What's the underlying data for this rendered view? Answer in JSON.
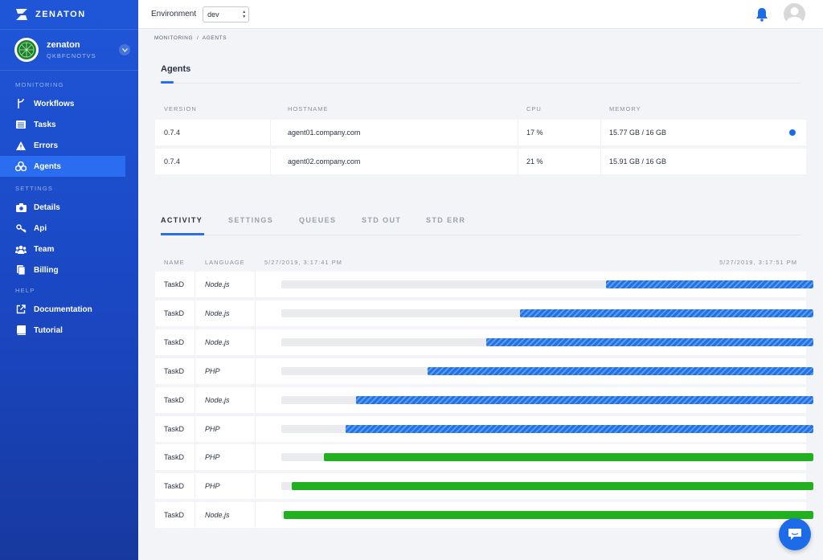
{
  "brand": {
    "name": "ZENATON"
  },
  "account": {
    "name": "zenaton",
    "id": "QKBFCNOTVS"
  },
  "sidebar": {
    "sections": [
      {
        "title": "MONITORING",
        "items": [
          {
            "label": "Workflows",
            "icon": "workflow-icon"
          },
          {
            "label": "Tasks",
            "icon": "tasks-icon"
          },
          {
            "label": "Errors",
            "icon": "warning-icon"
          },
          {
            "label": "Agents",
            "icon": "agents-icon",
            "active": true
          }
        ]
      },
      {
        "title": "SETTINGS",
        "items": [
          {
            "label": "Details",
            "icon": "camera-icon"
          },
          {
            "label": "Api",
            "icon": "key-icon"
          },
          {
            "label": "Team",
            "icon": "team-icon"
          },
          {
            "label": "Billing",
            "icon": "billing-icon"
          }
        ]
      },
      {
        "title": "HELP",
        "items": [
          {
            "label": "Documentation",
            "icon": "external-link-icon"
          },
          {
            "label": "Tutorial",
            "icon": "book-icon"
          }
        ]
      }
    ]
  },
  "topbar": {
    "env_label": "Environment",
    "env_value": "dev"
  },
  "breadcrumb": "MONITORING  /  AGENTS",
  "agents": {
    "title": "Agents",
    "headers": {
      "version": "VERSION",
      "hostname": "HOSTNAME",
      "cpu": "CPU",
      "memory": "MEMORY"
    },
    "rows": [
      {
        "version": "0.7.4",
        "hostname": "agent01.company.com",
        "cpu": "17 %",
        "memory": "15.77 GB / 16 GB",
        "selected": true
      },
      {
        "version": "0.7.4",
        "hostname": "agent02.company.com",
        "cpu": "21 %",
        "memory": "15.91 GB / 16 GB",
        "selected": false
      }
    ]
  },
  "tabs": [
    "ACTIVITY",
    "SETTINGS",
    "QUEUES",
    "STD OUT",
    "STD ERR"
  ],
  "activity": {
    "headers": {
      "name": "NAME",
      "language": "LANGUAGE",
      "start": "5/27/2019, 3:17:41 PM",
      "end": "5/27/2019, 3:17:51 PM"
    },
    "rows": [
      {
        "name": "TaskD",
        "language": "Node.js",
        "start": 0.611,
        "status": "running"
      },
      {
        "name": "TaskD",
        "language": "Node.js",
        "start": 0.449,
        "status": "running"
      },
      {
        "name": "TaskD",
        "language": "Node.js",
        "start": 0.385,
        "status": "running"
      },
      {
        "name": "TaskD",
        "language": "PHP",
        "start": 0.275,
        "status": "running"
      },
      {
        "name": "TaskD",
        "language": "Node.js",
        "start": 0.14,
        "status": "running"
      },
      {
        "name": "TaskD",
        "language": "PHP",
        "start": 0.121,
        "status": "running"
      },
      {
        "name": "TaskD",
        "language": "PHP",
        "start": 0.08,
        "status": "done"
      },
      {
        "name": "TaskD",
        "language": "PHP",
        "start": 0.02,
        "status": "done"
      },
      {
        "name": "TaskD",
        "language": "Node.js",
        "start": 0.005,
        "status": "done"
      }
    ]
  },
  "colors": {
    "accent": "#2a6df0",
    "running": "#1f72e8",
    "done": "#22b020",
    "sidebar": "#1f56d8"
  }
}
